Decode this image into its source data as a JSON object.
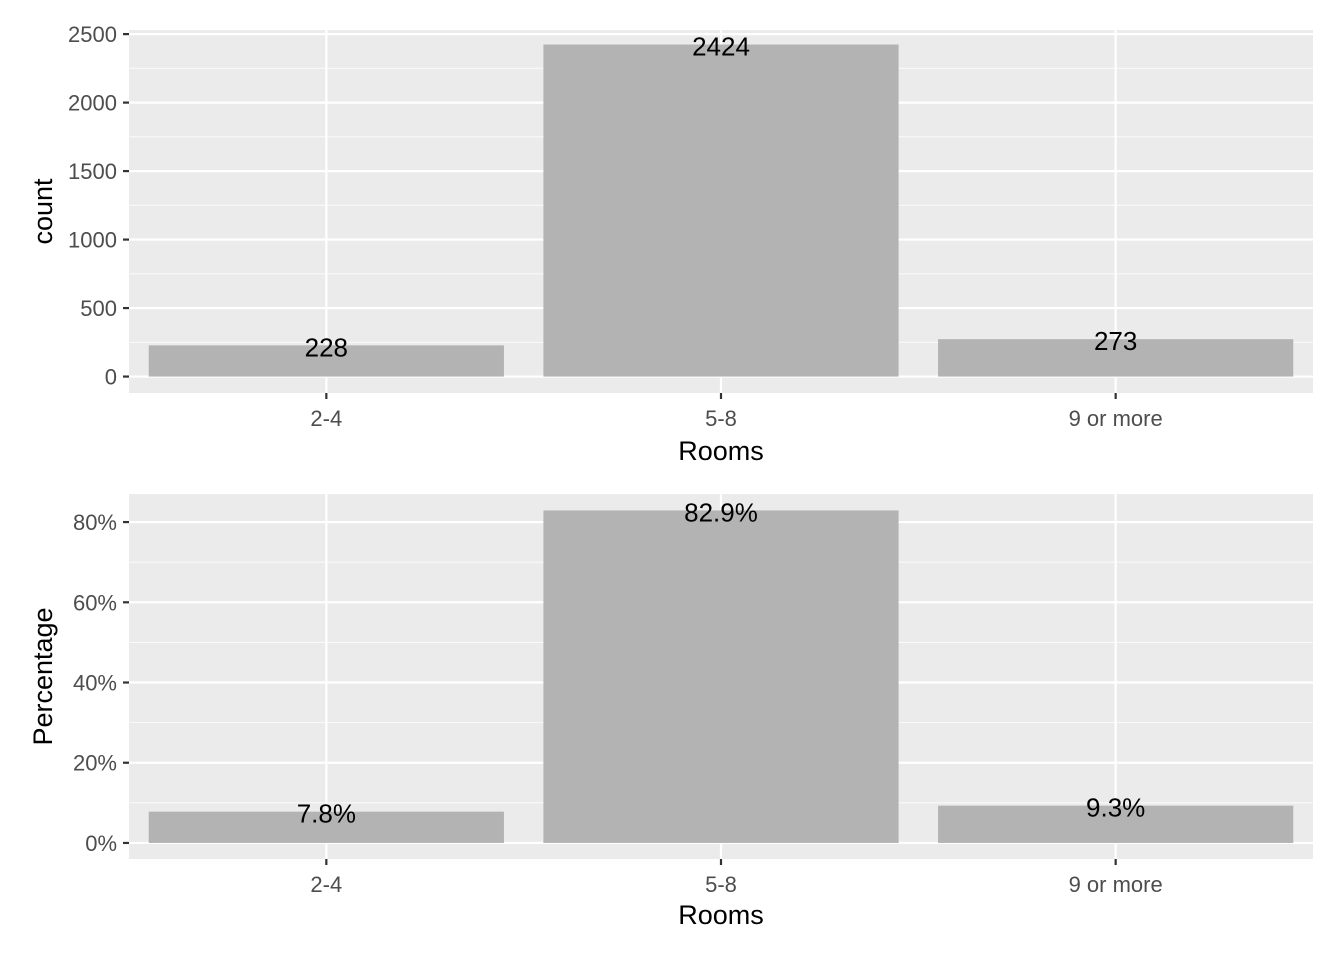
{
  "chart_data": [
    {
      "type": "bar",
      "categories": [
        "2-4",
        "5-8",
        "9 or more"
      ],
      "values": [
        228,
        2424,
        273
      ],
      "data_labels": [
        "228",
        "2424",
        "273"
      ],
      "xlabel": "Rooms",
      "ylabel": "count",
      "ylim": [
        -120,
        2530
      ],
      "yticks": [
        0,
        500,
        1000,
        1500,
        2000,
        2500
      ],
      "ytick_labels": [
        "0",
        "500",
        "1000",
        "1500",
        "2000",
        "2500"
      ],
      "grid": true
    },
    {
      "type": "bar",
      "categories": [
        "2-4",
        "5-8",
        "9 or more"
      ],
      "values": [
        7.8,
        82.9,
        9.3
      ],
      "data_labels": [
        "7.8%",
        "82.9%",
        "9.3%"
      ],
      "xlabel": "Rooms",
      "ylabel": "Percentage",
      "ylim": [
        -4,
        87
      ],
      "yticks": [
        0,
        20,
        40,
        60,
        80
      ],
      "ytick_labels": [
        "0%",
        "20%",
        "40%",
        "60%",
        "80%"
      ],
      "grid": true
    }
  ],
  "colors": {
    "panel_bg": "#ebebeb",
    "grid_major": "#ffffff",
    "bar_fill": "#b3b3b3",
    "tick_text": "#4d4d4d",
    "label_text": "#000000"
  }
}
